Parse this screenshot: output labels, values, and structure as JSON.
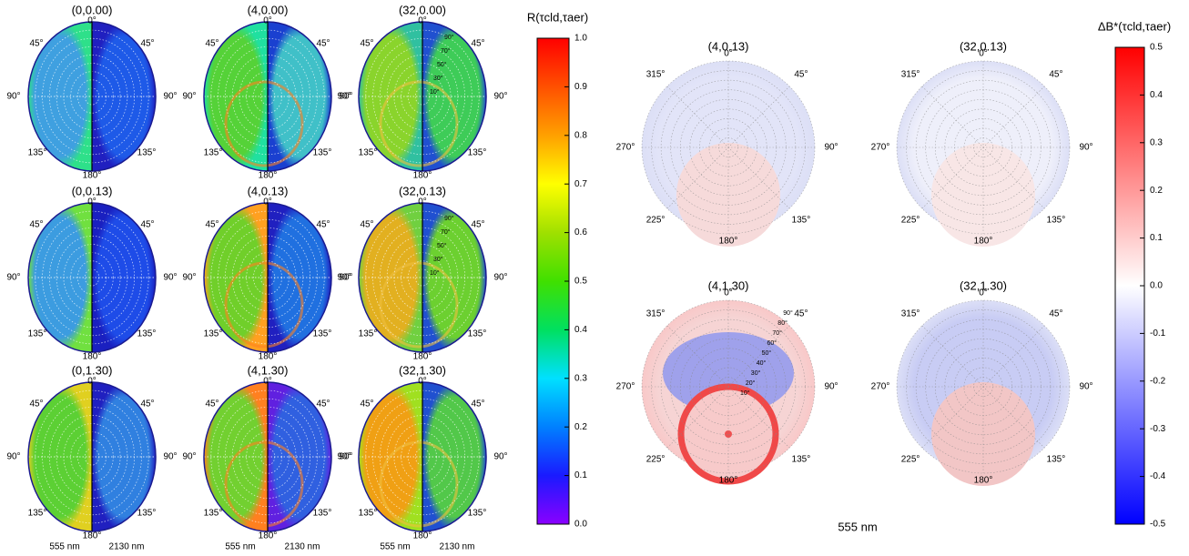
{
  "chart_data": [
    {
      "type": "polar_heatmap",
      "panels": [
        "(0,0.00)",
        "(4,0.00)",
        "(32,0.00)",
        "(0,0.13)",
        "(4,0.13)",
        "(32,0.13)",
        "(0,1.30)",
        "(4,1.30)",
        "(32,1.30)"
      ],
      "angle_labels": [
        "0°",
        "45°",
        "90°",
        "135°",
        "180°"
      ],
      "radial_labels": [
        "10°",
        "30°",
        "50°",
        "70°",
        "90°"
      ],
      "wavelength_labels": [
        "555 nm",
        "2130 nm"
      ],
      "colorbar_label": "R(τcld,τaer)",
      "ylim": [
        0,
        1
      ],
      "yticks": [
        {
          "value": 0,
          "label": "0.0"
        },
        0.1,
        0.2,
        0.3,
        0.4,
        0.5,
        0.6,
        0.7,
        0.8,
        0.9,
        {
          "value": 1,
          "label": "1.0"
        }
      ],
      "colormap": [
        "#8a00ff",
        "#1a1aff",
        "#0080ff",
        "#00e0ff",
        "#00e060",
        "#40e000",
        "#a0e000",
        "#ffff00",
        "#ffa000",
        "#ff5000",
        "#ff0000"
      ]
    },
    {
      "type": "polar_heatmap_diff",
      "panels": [
        "(4,0.13)",
        "(32,0.13)",
        "(4,1.30)",
        "(32,1.30)"
      ],
      "angle_labels": [
        "0°",
        "45°",
        "90°",
        "135°",
        "180°",
        "225°",
        "270°",
        "315°"
      ],
      "radial_labels": [
        "10°",
        "20°",
        "30°",
        "40°",
        "50°",
        "60°",
        "70°",
        "80°",
        "90°"
      ],
      "xlabel": "555 nm",
      "colorbar_label": "ΔB*(τcld,τaer)",
      "ylim": [
        -0.5,
        0.5
      ],
      "yticks": [
        -0.5,
        -0.4,
        -0.3,
        -0.2,
        -0.1,
        {
          "value": 0,
          "label": "0.0"
        },
        0.1,
        0.2,
        0.3,
        0.4,
        0.5
      ],
      "colormap": [
        "#0000ff",
        "#ffffff",
        "#ff0000"
      ]
    }
  ]
}
